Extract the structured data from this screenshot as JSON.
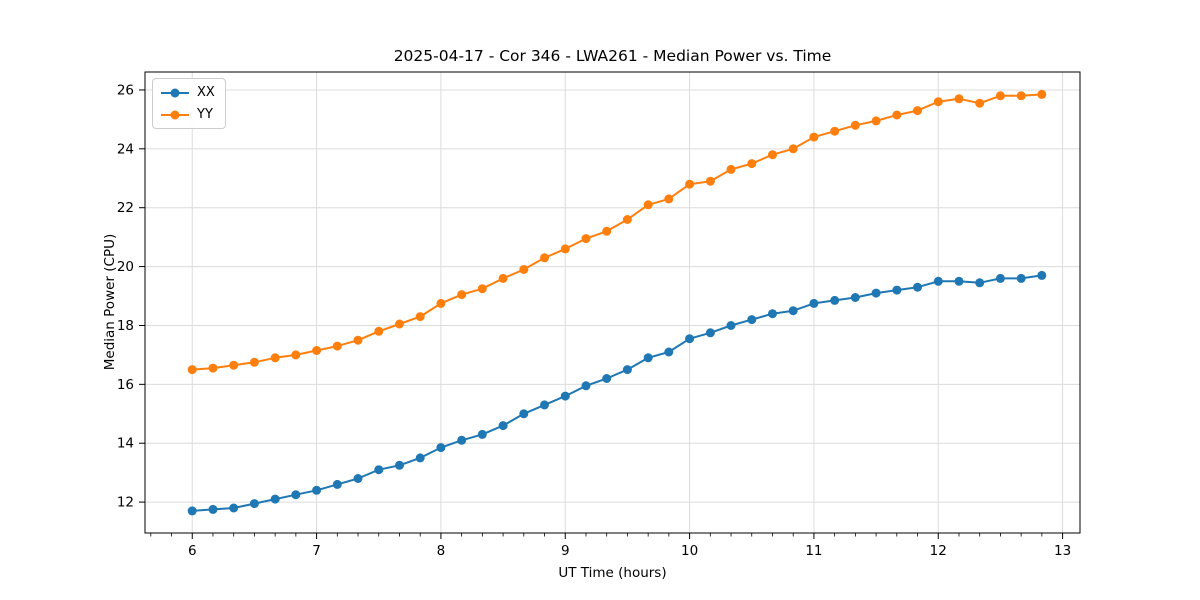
{
  "chart_data": {
    "type": "line",
    "title": "2025-04-17 - Cor 346 - LWA261 - Median Power vs. Time",
    "xlabel": "UT Time (hours)",
    "ylabel": "Median Power (CPU)",
    "xlim": [
      5.62,
      13.14
    ],
    "ylim": [
      10.95,
      26.61
    ],
    "xticks": [
      6,
      7,
      8,
      9,
      10,
      11,
      12,
      13
    ],
    "yticks": [
      12,
      14,
      16,
      18,
      20,
      22,
      24,
      26
    ],
    "x_minor_tick_step_hours": 0.1667,
    "grid": true,
    "legend_position": "upper left",
    "colors": {
      "background": "#ffffff",
      "grid": "#dcdcdc",
      "spine": "#000000"
    },
    "x": [
      6.0,
      6.167,
      6.333,
      6.5,
      6.667,
      6.833,
      7.0,
      7.167,
      7.333,
      7.5,
      7.667,
      7.833,
      8.0,
      8.167,
      8.333,
      8.5,
      8.667,
      8.833,
      9.0,
      9.167,
      9.333,
      9.5,
      9.667,
      9.833,
      10.0,
      10.167,
      10.333,
      10.5,
      10.667,
      10.833,
      11.0,
      11.167,
      11.333,
      11.5,
      11.667,
      11.833,
      12.0,
      12.167,
      12.333,
      12.5,
      12.667,
      12.833
    ],
    "series": [
      {
        "name": "XX",
        "color": "#1f77b4",
        "values": [
          11.7,
          11.75,
          11.8,
          11.95,
          12.1,
          12.25,
          12.4,
          12.6,
          12.8,
          13.1,
          13.25,
          13.5,
          13.85,
          14.1,
          14.3,
          14.6,
          15.0,
          15.3,
          15.6,
          15.95,
          16.2,
          16.5,
          16.9,
          17.1,
          17.55,
          17.75,
          18.0,
          18.2,
          18.4,
          18.5,
          18.75,
          18.85,
          18.95,
          19.1,
          19.2,
          19.3,
          19.5,
          19.5,
          19.45,
          19.6,
          19.6,
          19.7
        ]
      },
      {
        "name": "YY",
        "color": "#ff7f0e",
        "values": [
          16.5,
          16.55,
          16.65,
          16.75,
          16.9,
          17.0,
          17.15,
          17.3,
          17.5,
          17.8,
          18.05,
          18.3,
          18.75,
          19.05,
          19.25,
          19.6,
          19.9,
          20.3,
          20.6,
          20.95,
          21.2,
          21.6,
          22.1,
          22.3,
          22.8,
          22.9,
          23.3,
          23.5,
          23.8,
          24.0,
          24.4,
          24.6,
          24.8,
          24.95,
          25.15,
          25.3,
          25.6,
          25.7,
          25.55,
          25.8,
          25.8,
          25.85
        ]
      }
    ]
  }
}
